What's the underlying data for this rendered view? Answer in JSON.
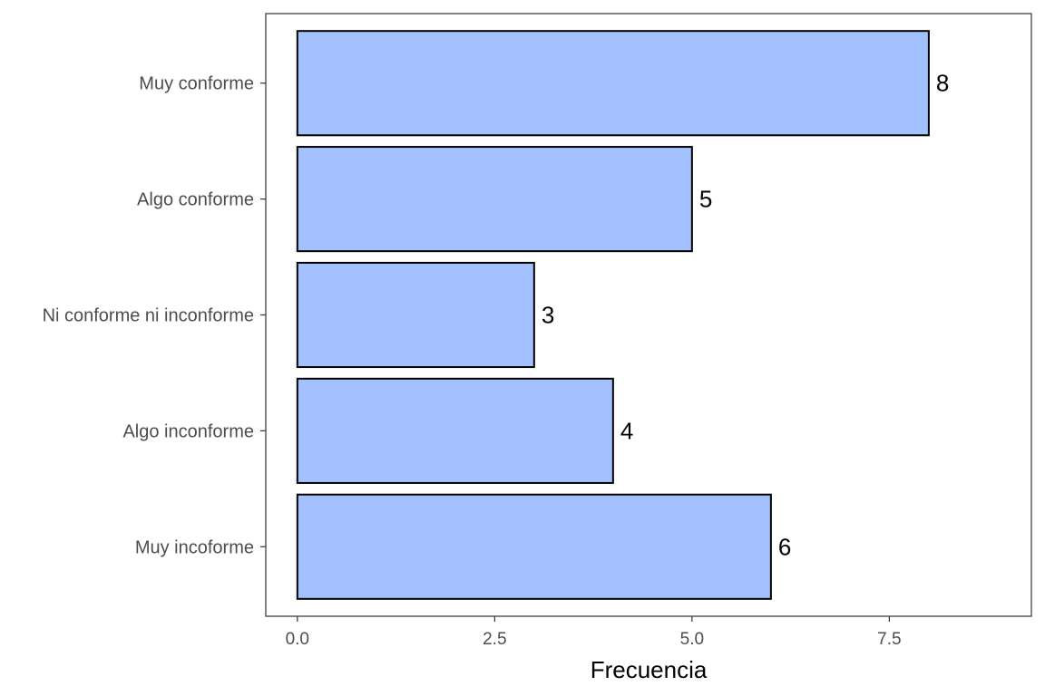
{
  "chart_data": {
    "type": "bar",
    "orientation": "horizontal",
    "categories": [
      "Muy conforme",
      "Algo conforme",
      "Ni conforme ni inconforme",
      "Algo inconforme",
      "Muy incoforme"
    ],
    "values": [
      8,
      5,
      3,
      4,
      6
    ],
    "value_labels": [
      "8",
      "5",
      "3",
      "4",
      "6"
    ],
    "xlabel": "Frecuencia",
    "ylabel": "",
    "xlim": [
      -0.4,
      9.3
    ],
    "x_ticks": [
      0,
      2.5,
      5,
      7.5
    ],
    "x_tick_labels": [
      "0.0",
      "2.5",
      "5.0",
      "7.5"
    ],
    "grid": false,
    "legend": "none",
    "colors": {
      "bar_fill": "#a3c1ff",
      "bar_stroke": "#000000",
      "panel_border": "#333333",
      "tick_text": "#4d4d4d"
    }
  }
}
